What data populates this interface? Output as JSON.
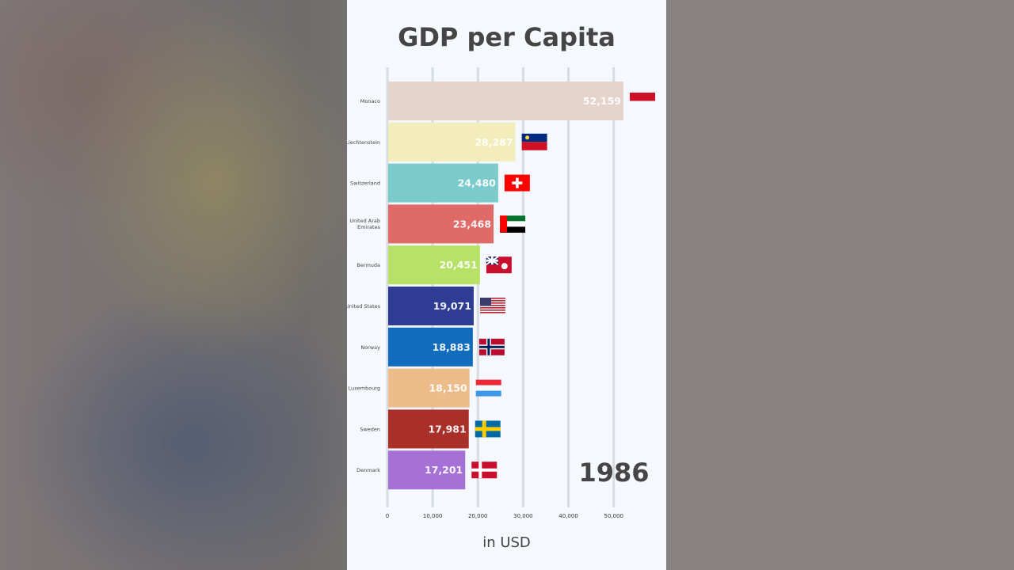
{
  "chart_data": {
    "type": "bar",
    "orientation": "horizontal",
    "title": "GDP per Capita",
    "xlabel": "in USD",
    "period_label": "1986",
    "xlim": [
      0,
      52159
    ],
    "x_ticks": [
      0,
      10000,
      20000,
      30000,
      40000,
      50000
    ],
    "x_tick_labels": [
      "0",
      "10,000",
      "20,000",
      "30,000",
      "40,000",
      "50,000"
    ],
    "grid": true,
    "categories": [
      "Monaco",
      "Liechtenstein",
      "Switzerland",
      "United Arab Emirates",
      "Bermuda",
      "United States",
      "Norway",
      "Luxembourg",
      "Sweden",
      "Denmark"
    ],
    "values": [
      52159,
      28287,
      24480,
      23468,
      20451,
      19071,
      18883,
      18150,
      17981,
      17201
    ],
    "value_labels": [
      "52,159",
      "28,287",
      "24,480",
      "23,468",
      "20,451",
      "19,071",
      "18,883",
      "18,150",
      "17,981",
      "17,201"
    ],
    "bar_colors": [
      "#e5d3cc",
      "#f2edbb",
      "#7bcbcc",
      "#e06a67",
      "#b8e168",
      "#2e3d93",
      "#126cbd",
      "#ecbd8b",
      "#a92f29",
      "#a571d6"
    ],
    "flags": [
      "monaco-flag",
      "liechtenstein-flag",
      "switzerland-flag",
      "uae-flag",
      "bermuda-flag",
      "usa-flag",
      "norway-flag",
      "luxembourg-flag",
      "sweden-flag",
      "denmark-flag"
    ]
  }
}
